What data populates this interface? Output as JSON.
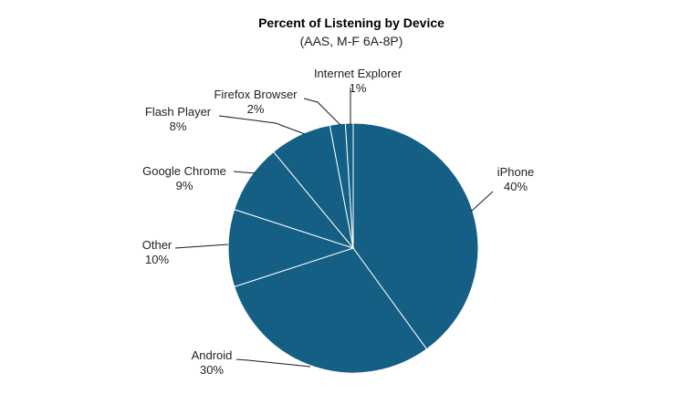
{
  "chart_data": {
    "type": "pie",
    "title": "Percent of Listening by Device",
    "subtitle": "(AAS, M-F 6A-8P)",
    "slice_color": "#145F83",
    "slices": [
      {
        "label": "iPhone",
        "value": 40,
        "value_label": "40%"
      },
      {
        "label": "Android",
        "value": 30,
        "value_label": "30%"
      },
      {
        "label": "Other",
        "value": 10,
        "value_label": "10%"
      },
      {
        "label": "Google Chrome",
        "value": 9,
        "value_label": "9%"
      },
      {
        "label": "Flash Player",
        "value": 8,
        "value_label": "8%"
      },
      {
        "label": "Firefox Browser",
        "value": 2,
        "value_label": "2%"
      },
      {
        "label": "Internet Explorer",
        "value": 1,
        "value_label": "1%"
      }
    ]
  }
}
